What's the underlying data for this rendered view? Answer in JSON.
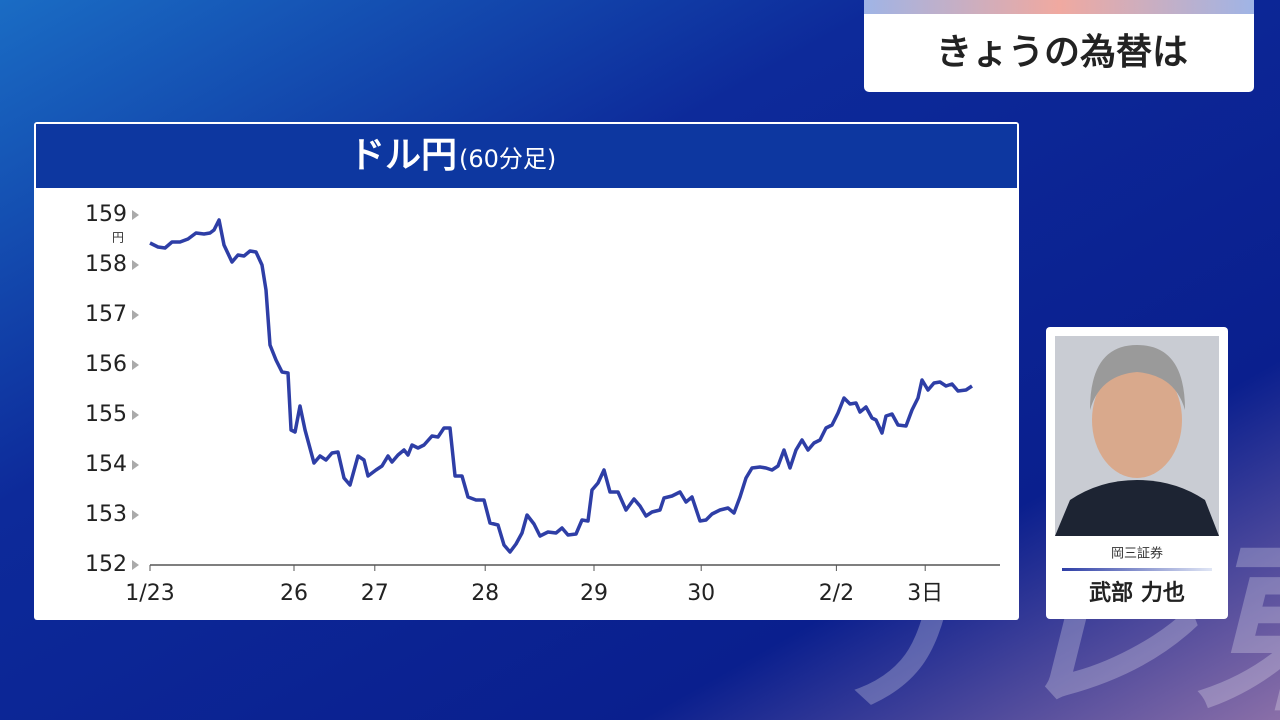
{
  "header": {
    "title": "きょうの為替は"
  },
  "person": {
    "company": "岡三証券",
    "name": "武部 力也"
  },
  "watermark": "テレ東",
  "chart_data": {
    "type": "line",
    "title": "ドル円",
    "subtitle": "(60分足)",
    "y_unit": "円",
    "x": [
      0,
      1,
      1.88,
      2.75,
      3.75,
      4.75,
      5.75,
      6.75,
      7.5,
      8,
      8.63,
      9.25,
      10.25,
      11,
      11.75,
      12.5,
      13.25,
      14,
      14.5,
      15,
      15.75,
      16.5,
      17.25,
      17.63,
      18.13,
      18.75,
      19.38,
      20.5,
      21.25,
      22,
      22.75,
      23.5,
      24.25,
      25,
      26,
      26.75,
      27.25,
      28.25,
      29,
      29.75,
      30.25,
      31,
      31.75,
      32.25,
      32.75,
      33.5,
      34.25,
      35.25,
      36,
      36.75,
      37.5,
      38.13,
      39,
      39.75,
      40.75,
      41.75,
      42.5,
      43.5,
      44.25,
      45,
      45.75,
      46.5,
      47.13,
      48,
      48.75,
      49.75,
      50.75,
      51.5,
      52.25,
      53.25,
      54,
      54.75,
      55.25,
      56,
      56.75,
      57.5,
      58.5,
      59.5,
      60.5,
      61.25,
      62,
      62.75,
      63.75,
      64.25,
      65.25,
      66.25,
      67,
      67.75,
      68.75,
      69.5,
      70.25,
      71.25,
      72.25,
      73,
      73.75,
      74.5,
      75.25,
      76.25,
      77,
      77.75,
      78.5,
      79.25,
      80,
      80.75,
      81.5,
      82.25,
      83,
      83.75,
      84.5,
      85.25,
      86,
      86.75,
      87.5,
      88.25,
      88.75,
      89.5,
      90.25,
      90.75,
      91.5,
      92,
      92.75,
      93.5,
      94.5,
      95.25,
      96,
      96.5,
      97.25,
      98,
      98.75,
      99.5,
      100.25,
      101,
      102,
      102.75
    ],
    "series": [
      {
        "color": "#2e3ea6",
        "values": [
          158.44,
          158.36,
          158.34,
          158.46,
          158.46,
          158.52,
          158.64,
          158.62,
          158.64,
          158.7,
          158.9,
          158.4,
          158.06,
          158.2,
          158.18,
          158.28,
          158.26,
          158,
          157.5,
          156.4,
          156.1,
          155.86,
          155.84,
          154.7,
          154.66,
          155.18,
          154.7,
          154.04,
          154.18,
          154.1,
          154.24,
          154.26,
          153.74,
          153.6,
          154.18,
          154.1,
          153.78,
          153.9,
          153.98,
          154.18,
          154.06,
          154.2,
          154.3,
          154.2,
          154.4,
          154.34,
          154.4,
          154.58,
          154.56,
          154.74,
          154.74,
          153.78,
          153.78,
          153.36,
          153.3,
          153.3,
          152.84,
          152.8,
          152.4,
          152.26,
          152.42,
          152.64,
          153,
          152.82,
          152.58,
          152.66,
          152.64,
          152.74,
          152.6,
          152.62,
          152.9,
          152.88,
          153.5,
          153.64,
          153.9,
          153.46,
          153.46,
          153.1,
          153.32,
          153.18,
          152.98,
          153.06,
          153.1,
          153.34,
          153.38,
          153.46,
          153.26,
          153.36,
          152.88,
          152.9,
          153.02,
          153.1,
          153.14,
          153.04,
          153.36,
          153.74,
          153.94,
          153.96,
          153.94,
          153.9,
          153.98,
          154.3,
          153.94,
          154.3,
          154.5,
          154.3,
          154.44,
          154.5,
          154.74,
          154.8,
          155.04,
          155.34,
          155.22,
          155.24,
          155.06,
          155.16,
          154.94,
          154.9,
          154.64,
          154.98,
          155.02,
          154.8,
          154.78,
          155.1,
          155.34,
          155.7,
          155.5,
          155.64,
          155.66,
          155.58,
          155.62,
          155.48,
          155.5,
          155.58
        ]
      }
    ],
    "xlim": [
      0,
      106.25
    ],
    "xticks": [
      {
        "value": 0,
        "label": "1/23"
      },
      {
        "value": 18,
        "label": "26"
      },
      {
        "value": 28.1,
        "label": "27"
      },
      {
        "value": 41.9,
        "label": "28"
      },
      {
        "value": 55.5,
        "label": "29"
      },
      {
        "value": 68.9,
        "label": "30"
      },
      {
        "value": 85.8,
        "label": "2/2"
      },
      {
        "value": 96.9,
        "label": "3日"
      }
    ],
    "ylim": [
      152,
      159
    ],
    "yticks": [
      152,
      153,
      154,
      155,
      156,
      157,
      158,
      159
    ]
  }
}
